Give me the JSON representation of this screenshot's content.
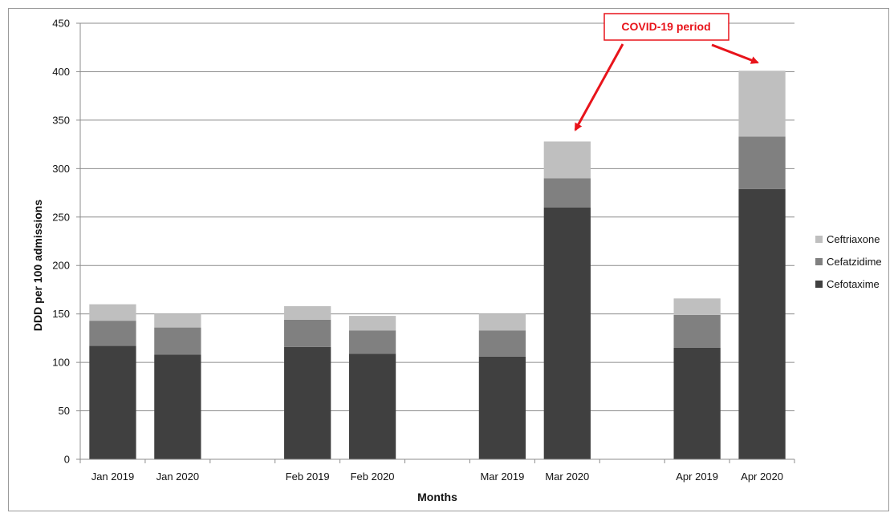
{
  "chart_data": {
    "type": "bar",
    "stacked": true,
    "title": "",
    "xlabel": "Months",
    "ylabel": "DDD per 100 admissions",
    "ylim": [
      0,
      450
    ],
    "yticks": [
      0,
      50,
      100,
      150,
      200,
      250,
      300,
      350,
      400,
      450
    ],
    "grid": true,
    "legend_position": "right",
    "groups": [
      [
        "Jan 2019",
        "Jan 2020"
      ],
      [
        "Feb 2019",
        "Feb 2020"
      ],
      [
        "Mar 2019",
        "Mar 2020"
      ],
      [
        "Apr 2019",
        "Apr 2020"
      ]
    ],
    "categories": [
      "Jan 2019",
      "Jan 2020",
      "Feb 2019",
      "Feb 2020",
      "Mar 2019",
      "Mar 2020",
      "Apr 2019",
      "Apr 2020"
    ],
    "series": [
      {
        "name": "Cefotaxime",
        "color": "#404040",
        "values": [
          117,
          108,
          116,
          109,
          106,
          260,
          115,
          279
        ]
      },
      {
        "name": "Cefatzidime",
        "color": "#808080",
        "values": [
          26,
          28,
          28,
          24,
          27,
          30,
          34,
          54
        ]
      },
      {
        "name": "Ceftriaxone",
        "color": "#bfbfbf",
        "values": [
          17,
          14,
          14,
          15,
          17,
          38,
          17,
          68
        ]
      }
    ],
    "annotation": {
      "text": "COVID-19 period",
      "targets": [
        "Mar 2020",
        "Apr 2020"
      ],
      "color": "#e8141b"
    }
  }
}
